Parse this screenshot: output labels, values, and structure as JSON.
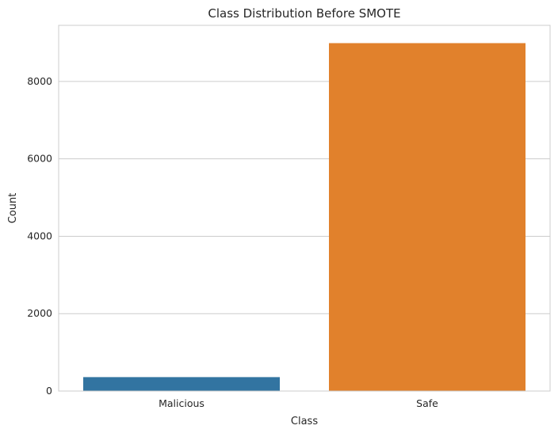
{
  "chart_data": {
    "type": "bar",
    "title": "Class Distribution Before SMOTE",
    "xlabel": "Class",
    "ylabel": "Count",
    "categories": [
      "Malicious",
      "Safe"
    ],
    "values": [
      360,
      8990
    ],
    "colors": [
      "#3274a1",
      "#e1812c"
    ],
    "ylim": [
      0,
      9450
    ],
    "yticks": [
      0,
      2000,
      4000,
      6000,
      8000
    ],
    "ytick_labels": [
      "0",
      "2000",
      "4000",
      "6000",
      "8000"
    ],
    "grid": "horizontal",
    "legend": "none"
  }
}
